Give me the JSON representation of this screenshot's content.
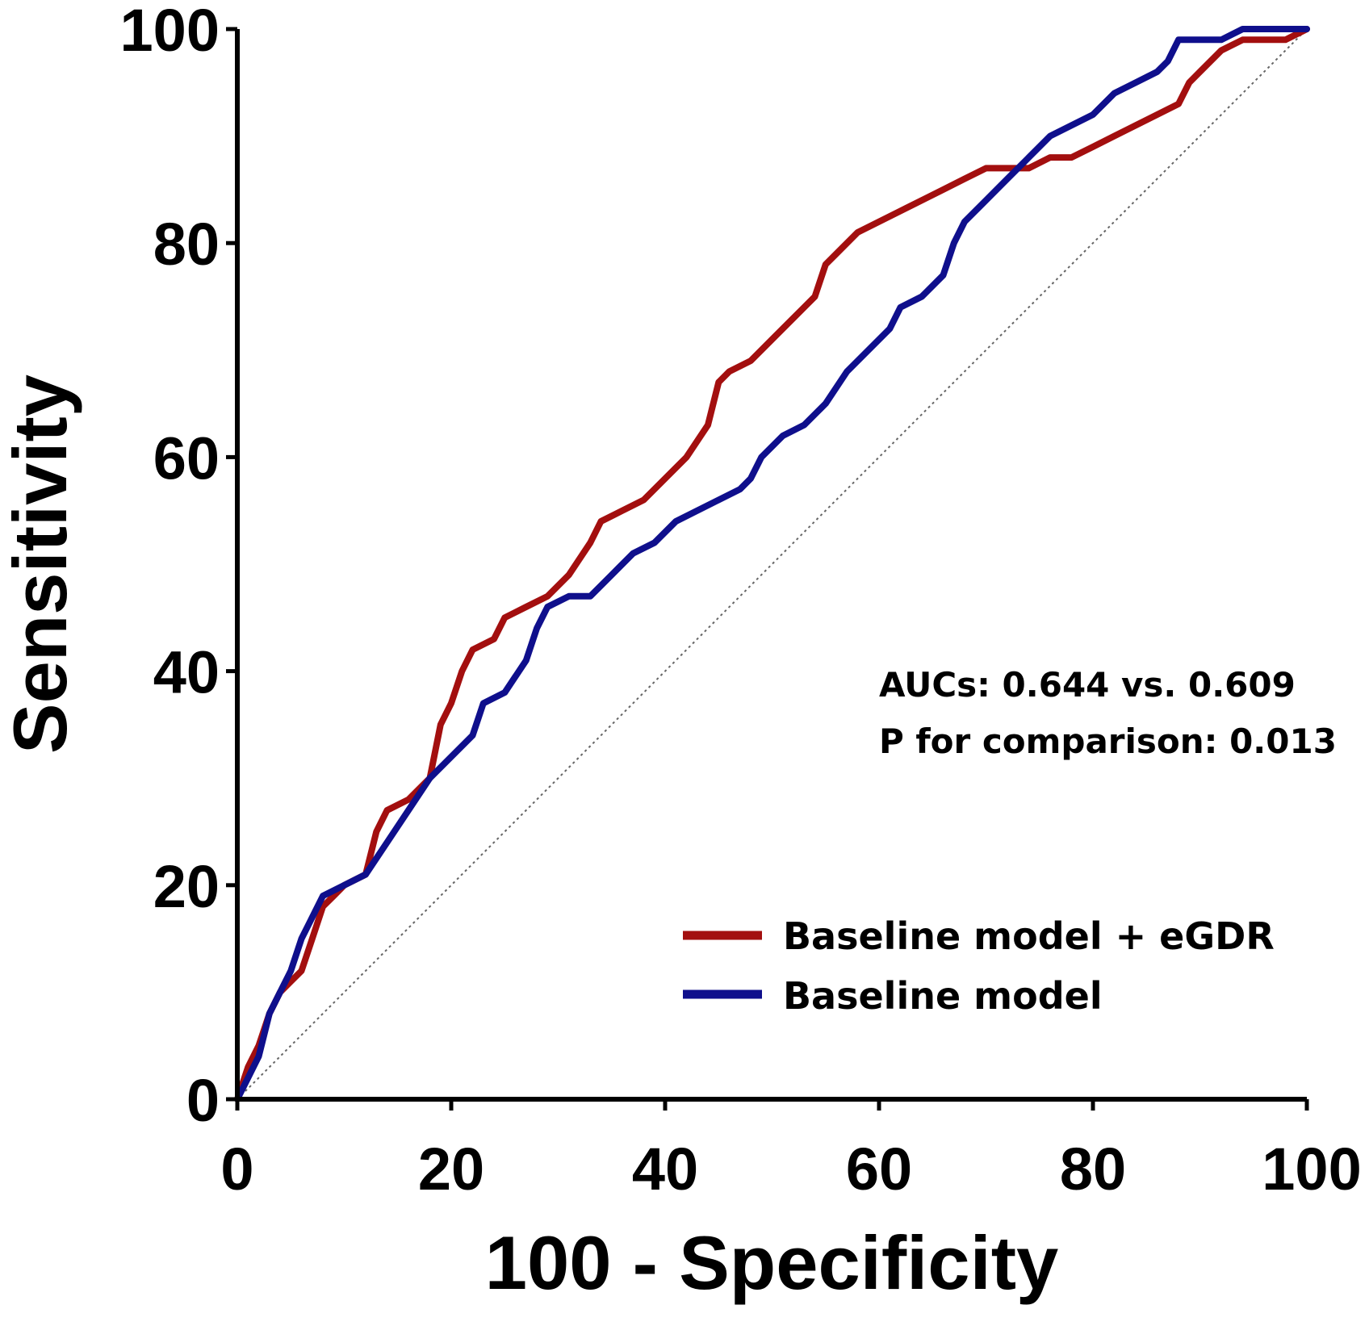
{
  "chart_data": {
    "type": "line",
    "title": "",
    "xlabel": "100 - Specificity",
    "ylabel": "Sensitivity",
    "xlim": [
      0,
      100
    ],
    "ylim": [
      0,
      100
    ],
    "xticks": [
      "0",
      "20",
      "40",
      "60",
      "80",
      "100"
    ],
    "yticks": [
      "0",
      "20",
      "40",
      "60",
      "80",
      "100"
    ],
    "legend_position": "bottom-right",
    "annotations": [
      "AUCs: 0.644 vs. 0.609",
      "P for comparison: 0.013"
    ],
    "reference_line": {
      "name": "chance",
      "x": [
        0,
        100
      ],
      "y": [
        0,
        100
      ],
      "style": "dotted",
      "color": "#666666"
    },
    "series": [
      {
        "name": "Baseline model + eGDR",
        "color": "#a30f0f",
        "x": [
          0,
          1,
          2,
          3,
          4,
          5,
          6,
          7,
          8,
          9,
          10,
          12,
          13,
          14,
          16,
          18,
          19,
          20,
          21,
          22,
          24,
          25,
          27,
          29,
          31,
          33,
          34,
          36,
          38,
          40,
          42,
          44,
          45,
          46,
          48,
          50,
          52,
          54,
          55,
          56,
          58,
          60,
          62,
          64,
          66,
          68,
          70,
          72,
          74,
          76,
          78,
          80,
          82,
          84,
          86,
          88,
          89,
          90,
          92,
          94,
          96,
          98,
          100
        ],
        "y": [
          0,
          3,
          5,
          8,
          10,
          11,
          12,
          15,
          18,
          19,
          20,
          21,
          25,
          27,
          28,
          30,
          35,
          37,
          40,
          42,
          43,
          45,
          46,
          47,
          49,
          52,
          54,
          55,
          56,
          58,
          60,
          63,
          67,
          68,
          69,
          71,
          73,
          75,
          78,
          79,
          81,
          82,
          83,
          84,
          85,
          86,
          87,
          87,
          87,
          88,
          88,
          89,
          90,
          91,
          92,
          93,
          95,
          96,
          98,
          99,
          99,
          99,
          100
        ]
      },
      {
        "name": "Baseline model",
        "color": "#0f0f8c",
        "x": [
          0,
          1,
          2,
          3,
          4,
          5,
          6,
          7,
          8,
          10,
          12,
          14,
          16,
          18,
          20,
          22,
          23,
          25,
          27,
          28,
          29,
          31,
          33,
          35,
          37,
          39,
          41,
          43,
          45,
          47,
          48,
          49,
          51,
          53,
          55,
          57,
          59,
          61,
          62,
          64,
          66,
          67,
          68,
          70,
          72,
          74,
          76,
          78,
          80,
          82,
          84,
          86,
          87,
          88,
          89,
          90,
          92,
          94,
          96,
          98,
          100
        ],
        "y": [
          0,
          2,
          4,
          8,
          10,
          12,
          15,
          17,
          19,
          20,
          21,
          24,
          27,
          30,
          32,
          34,
          37,
          38,
          41,
          44,
          46,
          47,
          47,
          49,
          51,
          52,
          54,
          55,
          56,
          57,
          58,
          60,
          62,
          63,
          65,
          68,
          70,
          72,
          74,
          75,
          77,
          80,
          82,
          84,
          86,
          88,
          90,
          91,
          92,
          94,
          95,
          96,
          97,
          99,
          99,
          99,
          99,
          100,
          100,
          100,
          100
        ]
      }
    ]
  }
}
